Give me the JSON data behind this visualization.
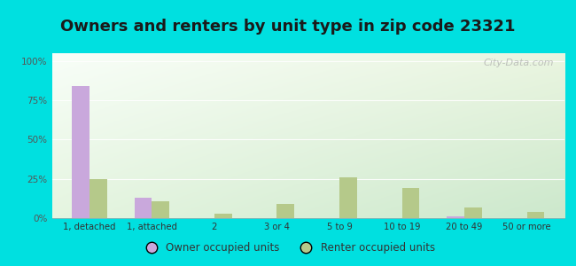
{
  "title": "Owners and renters by unit type in zip code 23321",
  "categories": [
    "1, detached",
    "1, attached",
    "2",
    "3 or 4",
    "5 to 9",
    "10 to 19",
    "20 to 49",
    "50 or more"
  ],
  "owner_values": [
    84,
    13,
    0,
    0,
    0,
    0,
    1,
    0
  ],
  "renter_values": [
    25,
    11,
    3,
    9,
    26,
    19,
    7,
    4
  ],
  "owner_color": "#c9a8dc",
  "renter_color": "#b5c98a",
  "background_outer": "#00e0e0",
  "grad_top_left": "#f0faf0",
  "grad_bottom_right": "#d8f0d0",
  "yticks": [
    0,
    25,
    50,
    75,
    100
  ],
  "ytick_labels": [
    "0%",
    "25%",
    "50%",
    "75%",
    "100%"
  ],
  "ylim": [
    0,
    105
  ],
  "legend_owner": "Owner occupied units",
  "legend_renter": "Renter occupied units",
  "title_fontsize": 13,
  "watermark": "City-Data.com",
  "fig_width": 6.5,
  "fig_height": 3.0
}
